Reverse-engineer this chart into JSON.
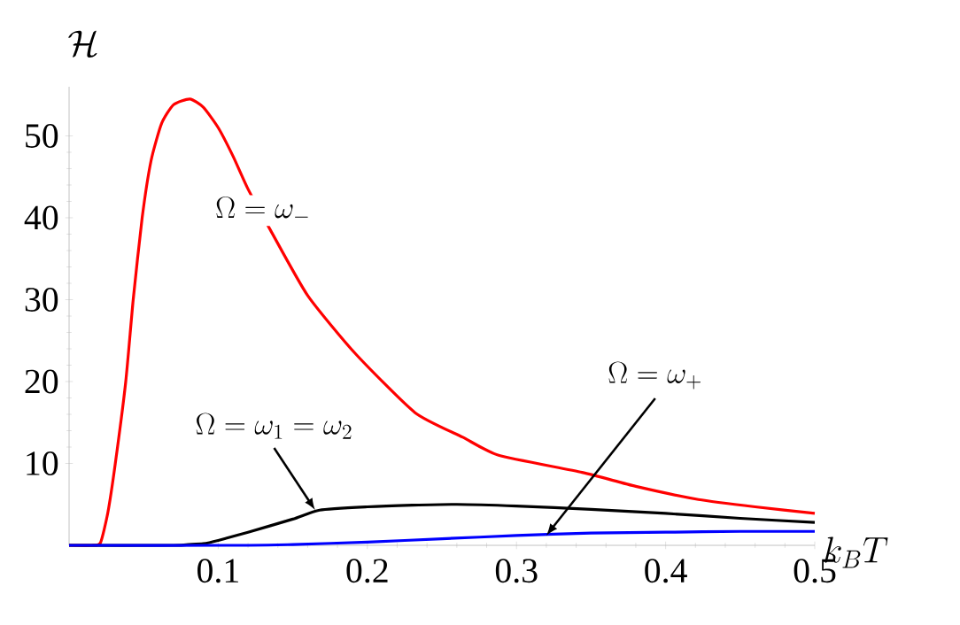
{
  "chart_data": {
    "type": "line",
    "xlabel": "k_BT",
    "ylabel": "\\mathcal{H}",
    "xlim": [
      0,
      0.5
    ],
    "ylim": [
      0,
      56
    ],
    "xticks": [
      0.1,
      0.2,
      0.3,
      0.4,
      0.5
    ],
    "yticks": [
      10,
      20,
      30,
      40,
      50
    ],
    "grid": false,
    "marker": "none",
    "line_style": "solid",
    "annotations": [
      "\\Omega = \\omega_-",
      {
        "text": "\\Omega = \\omega_1 = \\omega_2",
        "x": 0.165,
        "y": 4.3
      },
      {
        "text": "\\Omega = \\omega_+",
        "x": 0.32,
        "y": 1.2
      }
    ],
    "series": [
      {
        "color": "#ff0000",
        "x": [
          0,
          0.015,
          0.021,
          0.026,
          0.031,
          0.038,
          0.043,
          0.049,
          0.055,
          0.062,
          0.07,
          0.081,
          0.09,
          0.1,
          0.11,
          0.12,
          0.135,
          0.16,
          0.192,
          0.232,
          0.264,
          0.288,
          0.344,
          0.38,
          0.422,
          0.46,
          0.5
        ],
        "values": [
          0,
          0,
          0.3,
          4,
          10,
          20,
          30,
          40,
          47,
          51.5,
          53.8,
          54.5,
          53.5,
          51,
          47.5,
          43.5,
          38.5,
          30.5,
          23.4,
          16.2,
          13.2,
          11,
          8.9,
          7.2,
          5.6,
          4.7,
          3.9
        ]
      },
      {
        "color": "#000000",
        "x": [
          0,
          0.07,
          0.08,
          0.09,
          0.1,
          0.12,
          0.15,
          0.168,
          0.2,
          0.23,
          0.26,
          0.3,
          0.35,
          0.4,
          0.45,
          0.5
        ],
        "values": [
          0,
          0,
          0.1,
          0.2,
          0.6,
          1.6,
          3.2,
          4.3,
          4.7,
          4.9,
          5.0,
          4.8,
          4.4,
          3.9,
          3.3,
          2.8
        ]
      },
      {
        "color": "#0000ff",
        "x": [
          0,
          0.12,
          0.15,
          0.2,
          0.25,
          0.3,
          0.35,
          0.4,
          0.45,
          0.5
        ],
        "values": [
          0,
          0,
          0.1,
          0.4,
          0.8,
          1.2,
          1.5,
          1.6,
          1.7,
          1.7
        ]
      }
    ]
  }
}
